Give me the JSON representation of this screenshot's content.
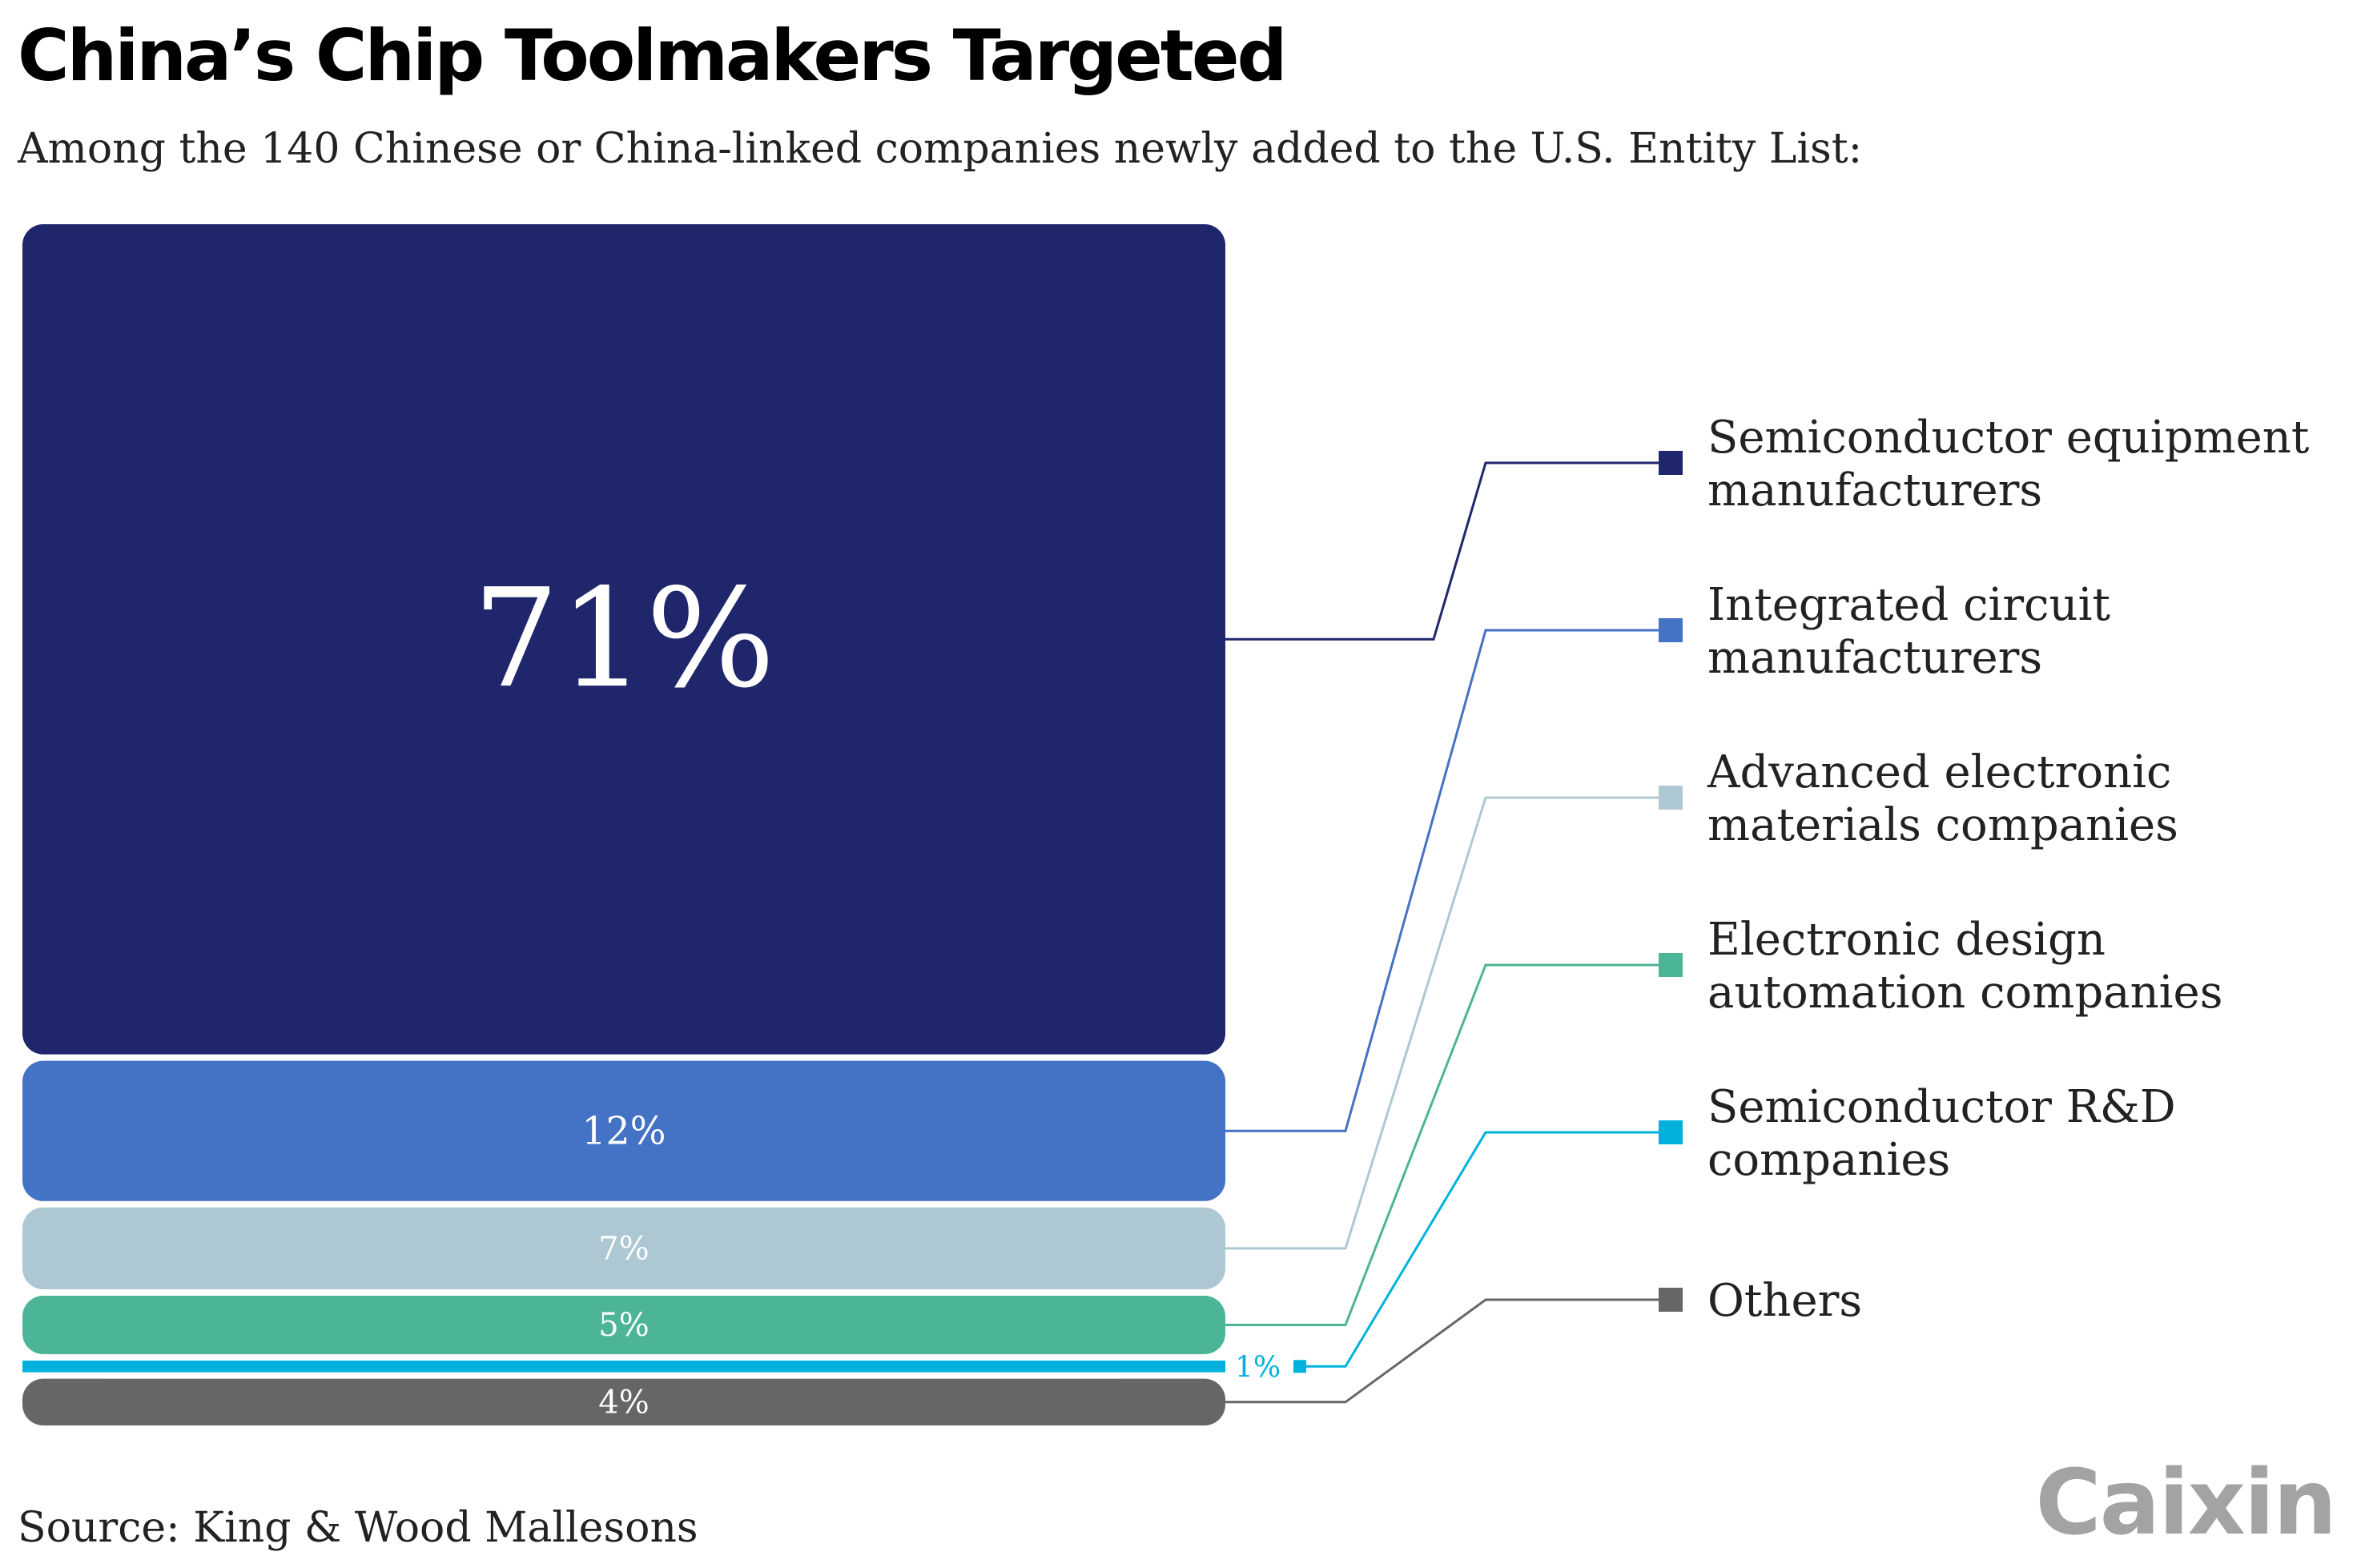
{
  "chart_data": {
    "type": "bar",
    "title": "China’s Chip Toolmakers Targeted",
    "subtitle": "Among the 140 Chinese or China-linked companies newly added to the U.S. Entity List:",
    "source": "Source: King & Wood Mallesons",
    "unit": "%",
    "categories": [
      "Semiconductor equipment manufacturers",
      "Integrated circuit manufacturers",
      "Advanced electronic materials companies",
      "Electronic design automation companies",
      "Semiconductor R&D companies",
      "Others"
    ],
    "values": [
      71,
      12,
      7,
      5,
      1,
      4
    ],
    "labels": [
      "71%",
      "12%",
      "7%",
      "5%",
      "1%",
      "4%"
    ],
    "legend_lines": [
      [
        "Semiconductor equipment",
        "manufacturers"
      ],
      [
        "Integrated circuit",
        "manufacturers"
      ],
      [
        "Advanced electronic",
        "materials companies"
      ],
      [
        "Electronic design",
        "automation companies"
      ],
      [
        "Semiconductor R&D",
        "companies"
      ],
      [
        "Others"
      ]
    ],
    "colors": [
      "#1f266b",
      "#4472c4",
      "#adc8d3",
      "#4db597",
      "#00b1de",
      "#666666"
    ],
    "legend_placement": "right",
    "grid": false
  },
  "brand": {
    "logo": "Caixin"
  }
}
